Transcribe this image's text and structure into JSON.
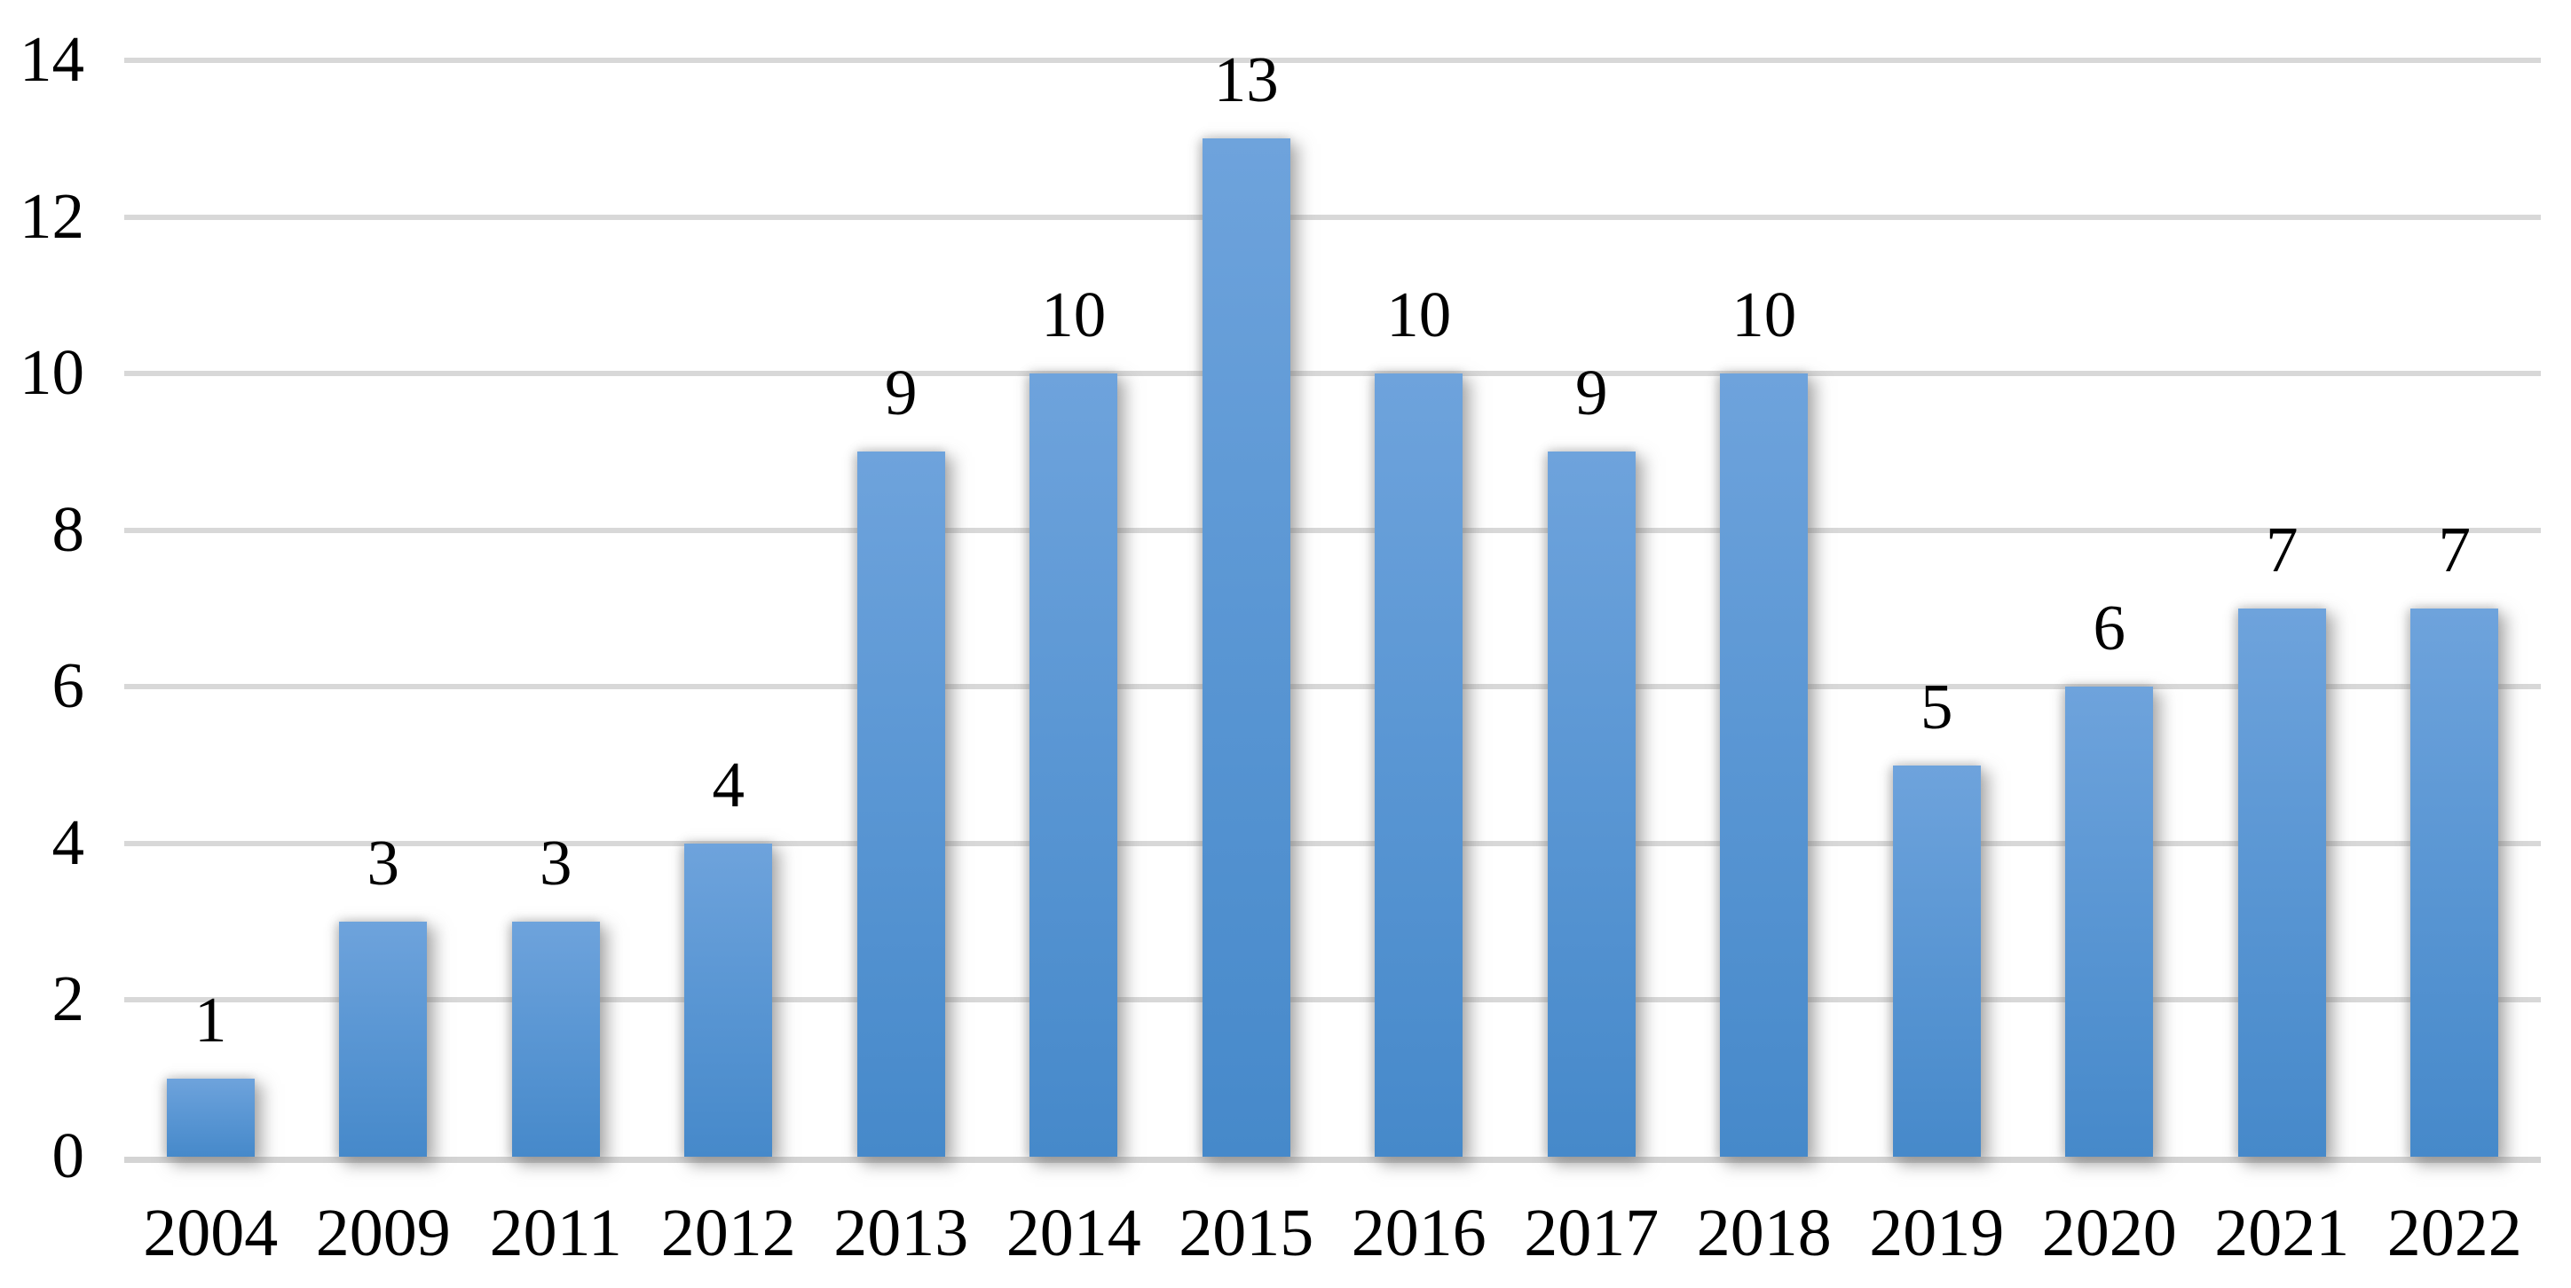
{
  "chart_data": {
    "type": "bar",
    "categories": [
      "2004",
      "2009",
      "2011",
      "2012",
      "2013",
      "2014",
      "2015",
      "2016",
      "2017",
      "2018",
      "2019",
      "2020",
      "2021",
      "2022"
    ],
    "values": [
      1,
      3,
      3,
      4,
      9,
      10,
      13,
      10,
      9,
      10,
      5,
      6,
      7,
      7
    ],
    "title": "",
    "xlabel": "",
    "ylabel": "",
    "ylim": [
      0,
      14
    ],
    "y_ticks": [
      0,
      2,
      4,
      6,
      8,
      10,
      12,
      14
    ],
    "grid": "horizontal",
    "legend": "none",
    "data_labels": "above-bars",
    "colors": {
      "bar_gradient_top": "#6ea3dc",
      "bar_gradient_bottom": "#4689ca",
      "gridline": "#d8d8d8",
      "axis_line": "#d4d4d4",
      "label_text": "#000000",
      "background": "#ffffff"
    }
  }
}
